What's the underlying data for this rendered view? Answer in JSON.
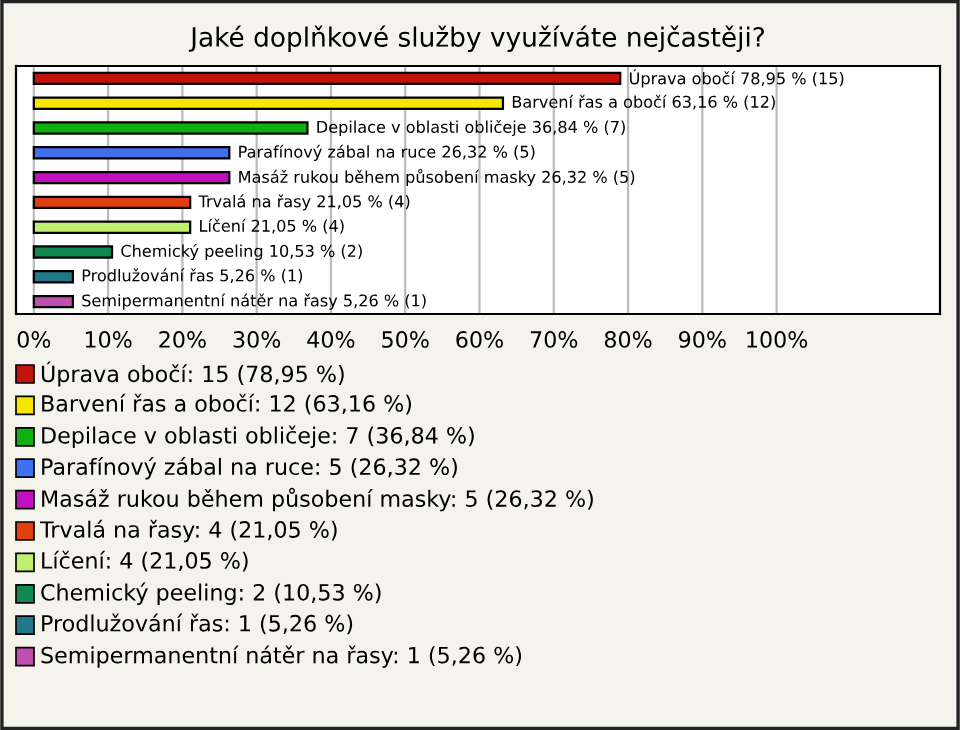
{
  "chart_data": {
    "type": "bar",
    "orientation": "horizontal",
    "title": "Jaké doplňkové služby využíváte nejčastěji?",
    "categories": [
      null,
      null,
      null,
      null,
      null,
      null,
      null,
      null,
      null,
      null
    ],
    "values": [
      78.95,
      63.16,
      36.84,
      26.32,
      26.32,
      21.05,
      21.05,
      10.53,
      5.26,
      5.26
    ],
    "colors": [
      "#c0140c",
      "#f7e600",
      "#10b010",
      "#4070f0",
      "#c010c0",
      "#e04010",
      "#c0f070",
      "#108850",
      "#207888",
      "#c050b0"
    ],
    "value_labels": [
      "Úprava obočí 78,95 % (15)",
      "Barvení řas a obočí 63,16 % (12)",
      "Depilace v oblasti obličeje 36,84 % (7)",
      "Parafínový zábal na ruce 26,32 % (5)",
      "Masáž rukou během působení masky 26,32 % (5)",
      "Trvalá na řasy 21,05 % (4)",
      "Líčení 21,05 % (4)",
      "Chemický peeling 10,53 % (2)",
      "Prodlužování řas 5,26 % (1)",
      "Semipermanentní nátěr na řasy 5,26 % (1)"
    ],
    "annotations": [
      "Úprava obočí: 15 (78,95 %)",
      "Barvení řas a obočí: 12 (63,16 %)",
      "Depilace v oblasti obličeje: 7 (36,84 %)",
      "Parafínový zábal na ruce: 5 (26,32 %)",
      "Masáž rukou během působení masky: 5 (26,32 %)",
      "Trvalá na řasy: 4 (21,05 %)",
      "Líčení: 4 (21,05 %)",
      "Chemický peeling: 2 (10,53 %)",
      "Prodlužování řas: 1 (5,26 %)",
      "Semipermanentní nátěr na řasy: 1 (5,26 %)"
    ],
    "grid": "x",
    "tick_labels": "x",
    "xlim": [
      -2.4,
      122
    ],
    "xticks": [
      {
        "value": 0,
        "label": "0%"
      },
      {
        "value": 10,
        "label": "10%"
      },
      {
        "value": 20,
        "label": "20%"
      },
      {
        "value": 30,
        "label": "30%"
      },
      {
        "value": 40,
        "label": "40%"
      },
      {
        "value": 50,
        "label": "50%"
      },
      {
        "value": 60,
        "label": "60%"
      },
      {
        "value": 70,
        "label": "70%"
      },
      {
        "value": 80,
        "label": "80%"
      },
      {
        "value": 90,
        "label": "90%"
      },
      {
        "value": 100,
        "label": "100%"
      }
    ]
  }
}
